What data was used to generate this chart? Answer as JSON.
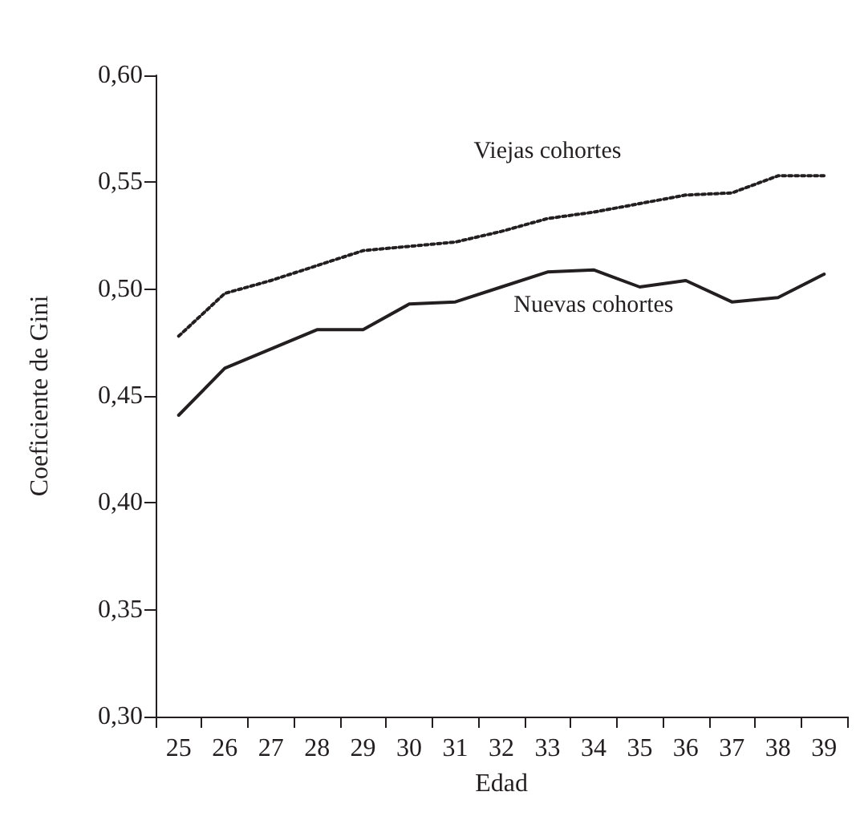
{
  "chart_data": {
    "type": "line",
    "xlabel": "Edad",
    "ylabel": "Coeficiente de Gini",
    "categories": [
      "25",
      "26",
      "27",
      "28",
      "29",
      "30",
      "31",
      "32",
      "33",
      "34",
      "35",
      "36",
      "37",
      "38",
      "39"
    ],
    "series": [
      {
        "name": "Viejas cohortes",
        "color": "#231f20",
        "line_style": "dotted",
        "values": [
          0.478,
          0.498,
          0.504,
          0.511,
          0.518,
          0.52,
          0.522,
          0.527,
          0.533,
          0.536,
          0.54,
          0.544,
          0.545,
          0.553,
          0.553
        ]
      },
      {
        "name": "Nuevas cohortes",
        "color": "#231f20",
        "line_style": "solid",
        "values": [
          0.441,
          0.463,
          0.472,
          0.481,
          0.481,
          0.493,
          0.494,
          0.501,
          0.508,
          0.509,
          0.501,
          0.504,
          0.494,
          0.496,
          0.507
        ]
      }
    ],
    "ylim": [
      0.3,
      0.6
    ],
    "yticks": [
      {
        "value": 0.3,
        "label": "0,30"
      },
      {
        "value": 0.35,
        "label": "0,35"
      },
      {
        "value": 0.4,
        "label": "0,40"
      },
      {
        "value": 0.45,
        "label": "0,45"
      },
      {
        "value": 0.5,
        "label": "0,50"
      },
      {
        "value": 0.55,
        "label": "0,55"
      },
      {
        "value": 0.6,
        "label": "0,60"
      }
    ],
    "grid": false,
    "legend": false,
    "marker": "none"
  }
}
